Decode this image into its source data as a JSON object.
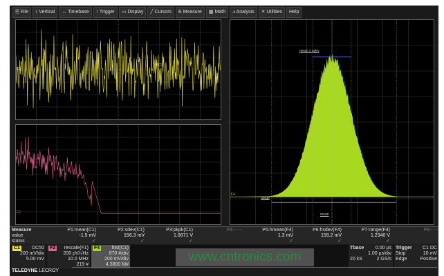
{
  "menu": [
    "File",
    "Vertical",
    "Timebase",
    "Trigger",
    "Display",
    "Cursors",
    "Measure",
    "Math",
    "Analysis",
    "Utilities",
    "Help"
  ],
  "menu_icons": [
    "file-icon",
    "vertical-icon",
    "timebase-icon",
    "trigger-icon",
    "display-icon",
    "cursors-icon",
    "measure-icon",
    "math-icon",
    "analysis-icon",
    "utilities-icon",
    ""
  ],
  "traces": {
    "c1_label": "C1",
    "f2_label": "F2",
    "f4_label": "F4",
    "p_marker": "P1(C)",
    "c1_color": "#e8e040",
    "f2_color": "#e0608a",
    "f4_color": "#a8d820"
  },
  "hist_annotations": {
    "sdev": "mean ± sdev",
    "range": "range",
    "mean": "mean"
  },
  "measure": {
    "labels": [
      "Measure",
      "value",
      "status"
    ],
    "params": [
      {
        "name": "P1:mean(C1)",
        "value": "-1.5 mV",
        "status": "✓"
      },
      {
        "name": "P2:sdev(C1)",
        "value": "156.3 mV",
        "status": "✓"
      },
      {
        "name": "P3:pkpk(C1)",
        "value": "1.0671 V",
        "status": "✓"
      },
      {
        "name": "P4:- - -",
        "value": "",
        "status": ""
      },
      {
        "name": "P5:hmean(F4)",
        "value": "1.3 mV",
        "status": "✓"
      },
      {
        "name": "P6:hsdev(F4)",
        "value": "155.2 mV",
        "status": "✓"
      },
      {
        "name": "P7:range(F4)",
        "value": "1.2340 V",
        "status": "✓"
      },
      {
        "name": "P8:- - -",
        "value": "",
        "status": ""
      }
    ]
  },
  "channels": {
    "c1": {
      "badge": "C1",
      "coupling": "DC50",
      "l1": "200 mV/div",
      "l2": "5.00 mV"
    },
    "f2": {
      "badge": "F2",
      "title": "rescale(F1)",
      "l1": "200 pV/√Hz",
      "l2": "10.0 MHz",
      "l3": "219 #"
    },
    "f4": {
      "badge": "F4",
      "title": "hist(C1)",
      "l1": "870 #/div",
      "l2": "200 mV/div",
      "l3": "4.3800 M#"
    }
  },
  "timebase": {
    "title": "Tbase",
    "delay": "0.00 µs",
    "tdiv": "1.00 µs/div",
    "samples": "20 kS",
    "rate": "2 GS/s"
  },
  "trigger": {
    "title": "Trigger",
    "src": "C1",
    "coupling": "DC",
    "mode": "Stop",
    "level": "10 mV",
    "type": "Edge",
    "slope": "Positive"
  },
  "brand": {
    "a": "TELEDYNE",
    "b": "LECROY"
  },
  "watermark": "www.cntronics.com"
}
